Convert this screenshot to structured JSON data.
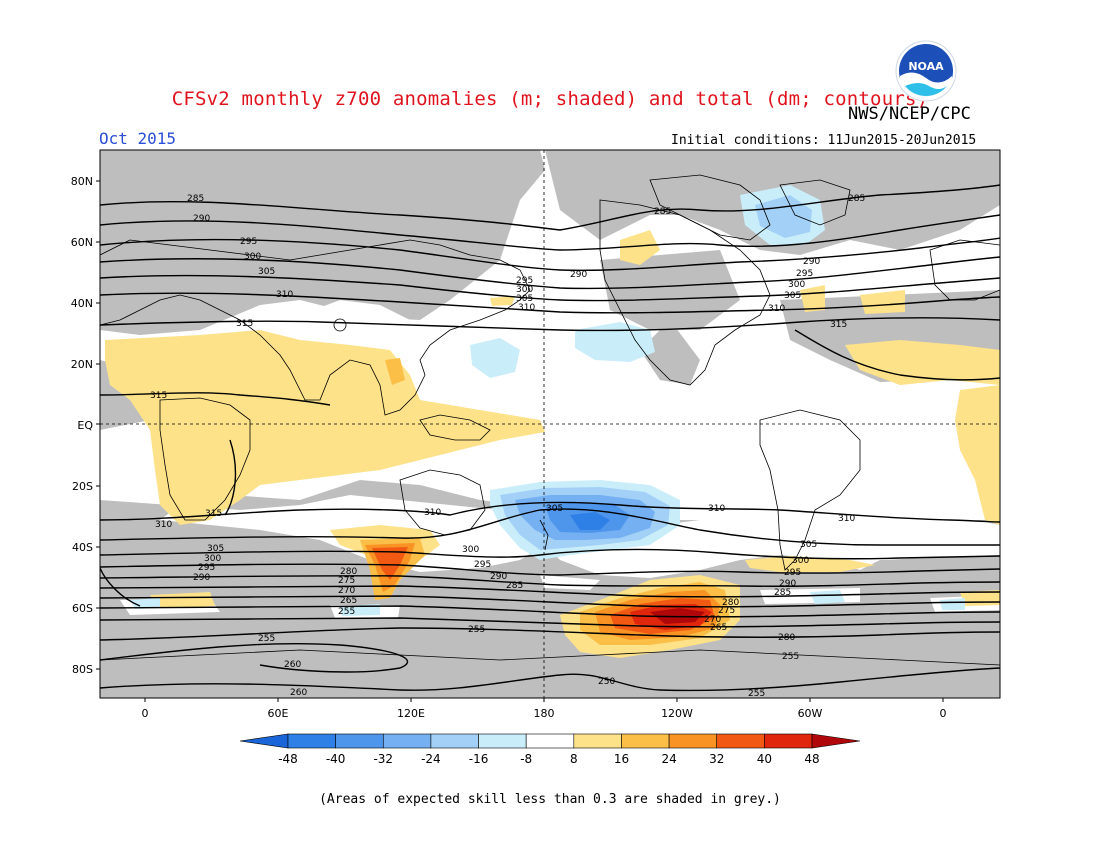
{
  "header": {
    "title": "CFSv2 monthly z700 anomalies (m; shaded) and total (dm; contours)",
    "month": "Oct 2015",
    "agency": "NWS/NCEP/CPC",
    "initial_conditions": "Initial conditions: 11Jun2015-20Jun2015",
    "logo_text": "NOAA"
  },
  "map": {
    "lat_labels": [
      "80N",
      "60N",
      "40N",
      "20N",
      "EQ",
      "20S",
      "40S",
      "60S",
      "80S"
    ],
    "lon_labels": [
      "0",
      "60E",
      "120E",
      "180",
      "120W",
      "60W",
      "0"
    ],
    "contour_labels": [
      "285",
      "290",
      "295",
      "300",
      "305",
      "310",
      "315",
      "310",
      "305",
      "300",
      "295",
      "290",
      "285",
      "280",
      "275",
      "270",
      "265",
      "260",
      "255",
      "250"
    ],
    "colors": {
      "skill_grey": "#bebebe",
      "land_outline": "#000000"
    }
  },
  "colorbar": {
    "labels": [
      "-48",
      "-40",
      "-32",
      "-24",
      "-16",
      "-8",
      "8",
      "16",
      "24",
      "32",
      "40",
      "48"
    ],
    "colors": [
      "#1a66d8",
      "#2f80e6",
      "#4e96ec",
      "#74b0f2",
      "#a3d0f7",
      "#c9eefa",
      "#ffffff",
      "#fde28a",
      "#fbbf48",
      "#f89324",
      "#f25a14",
      "#e0260c",
      "#b0070b"
    ]
  },
  "footnote": "(Areas of expected skill less than 0.3 are shaded in grey.)"
}
